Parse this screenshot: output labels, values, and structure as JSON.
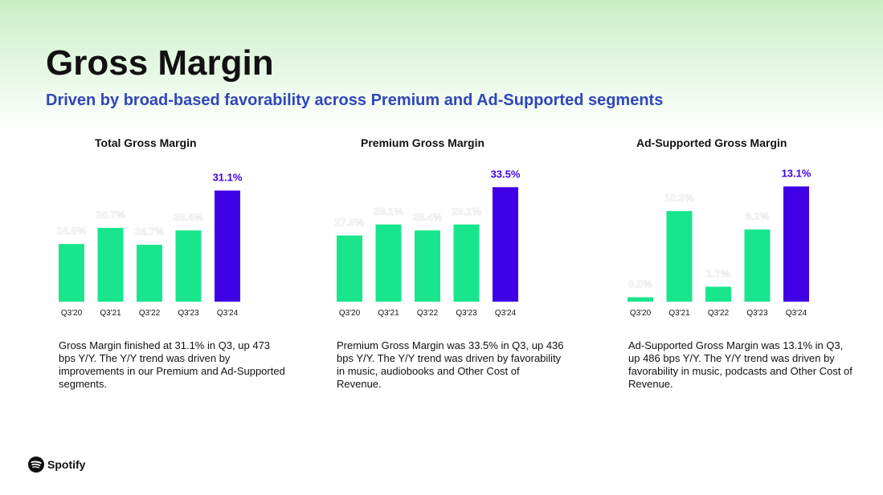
{
  "title": "Gross Margin",
  "subtitle": "Driven by broad-based favorability across Premium and Ad-Supported segments",
  "colors": {
    "bar": "#19e68c",
    "highlight": "#3f00e6",
    "subtitle": "#3046b8"
  },
  "panels": [
    {
      "text": "Gross Margin finished at 31.1% in Q3, up 473 bps Y/Y. The Y/Y trend was driven by improvements in our Premium and Ad-Supported segments."
    },
    {
      "text": "Premium Gross Margin was 33.5% in Q3, up 436 bps Y/Y. The Y/Y trend was driven by favorability in music, audiobooks and Other Cost of Revenue."
    },
    {
      "text": "Ad-Supported Gross Margin was 13.1% in Q3, up 486 bps Y/Y. The Y/Y trend was driven by favorability in music, podcasts and Other Cost of Revenue."
    }
  ],
  "chart_data": [
    {
      "type": "bar",
      "title": "Total Gross Margin",
      "categories": [
        "Q3'20",
        "Q3'21",
        "Q3'22",
        "Q3'23",
        "Q3'24"
      ],
      "values": [
        24.8,
        26.7,
        24.7,
        26.4,
        31.1
      ],
      "labels": [
        "24.8%",
        "26.7%",
        "24.7%",
        "26.4%",
        "31.1%"
      ],
      "ylim": [
        18,
        32
      ],
      "highlight_index": 4
    },
    {
      "type": "bar",
      "title": "Premium Gross Margin",
      "categories": [
        "Q3'20",
        "Q3'21",
        "Q3'22",
        "Q3'23",
        "Q3'24"
      ],
      "values": [
        27.8,
        29.1,
        28.4,
        29.1,
        33.5
      ],
      "labels": [
        "27.8%",
        "29.1%",
        "28.4%",
        "29.1%",
        "33.5%"
      ],
      "ylim": [
        20,
        34
      ],
      "highlight_index": 4
    },
    {
      "type": "bar",
      "title": "Ad-Supported Gross Margin",
      "categories": [
        "Q3'20",
        "Q3'21",
        "Q3'22",
        "Q3'23",
        "Q3'24"
      ],
      "values": [
        0.5,
        10.3,
        1.7,
        8.2,
        13.1
      ],
      "labels": [
        "0.5%",
        "10.3%",
        "1.7%",
        "8.2%",
        "13.1%"
      ],
      "ylim": [
        0,
        13.5
      ],
      "highlight_index": 4
    }
  ],
  "logo": {
    "name": "Spotify"
  }
}
